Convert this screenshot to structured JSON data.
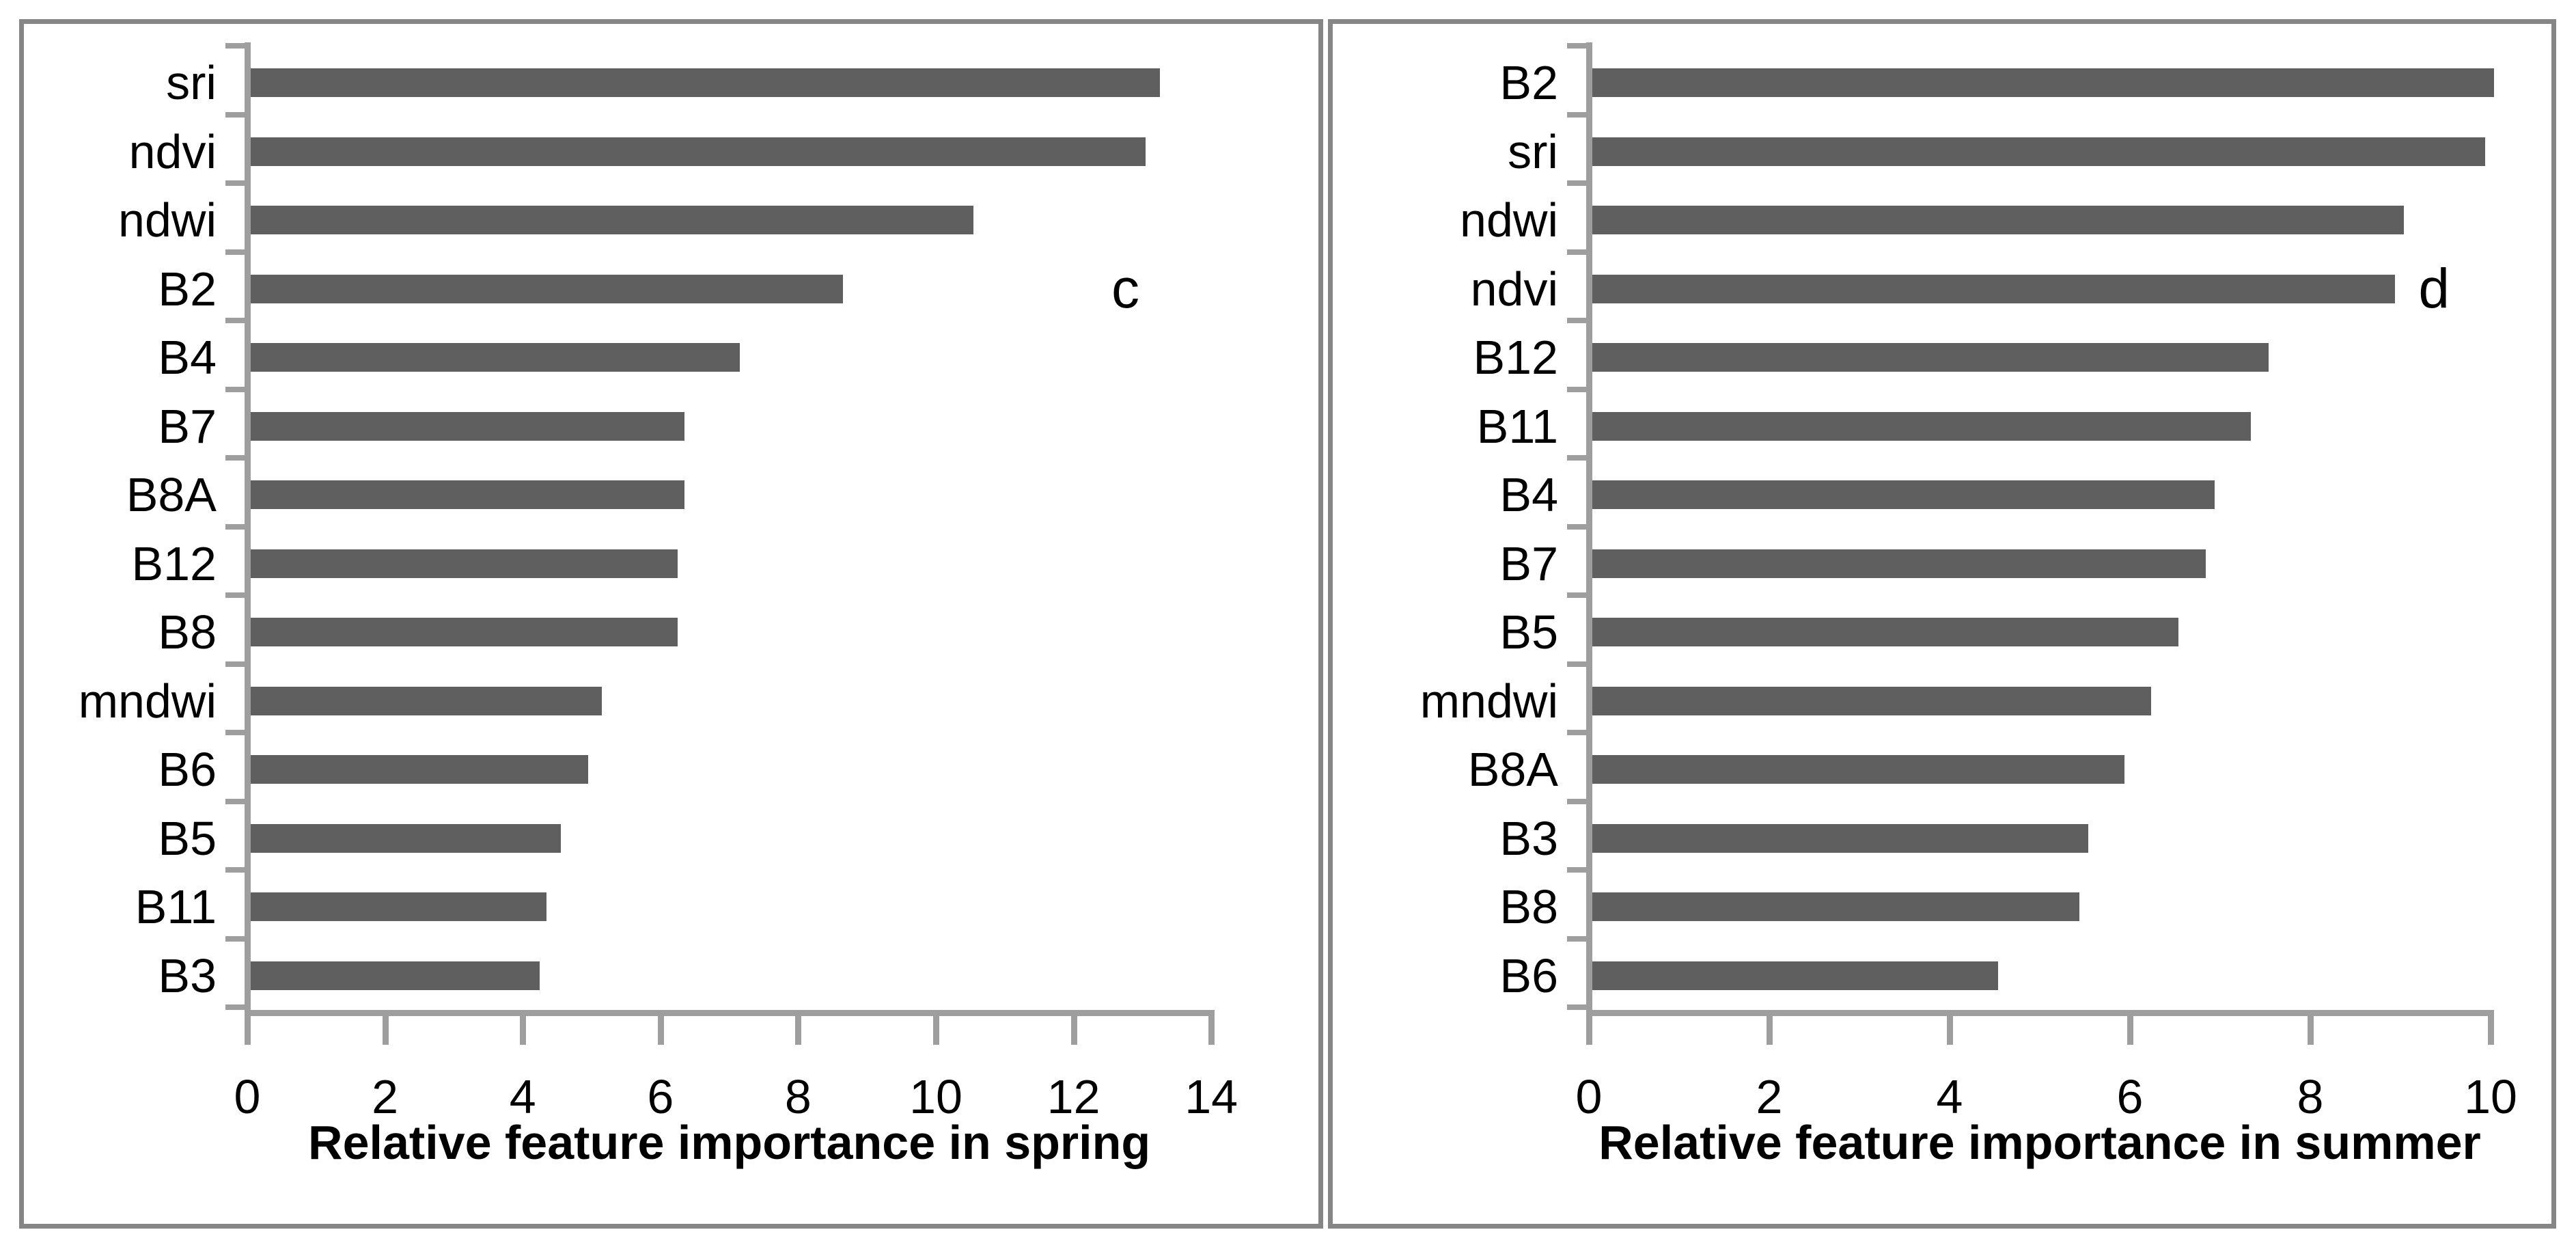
{
  "figure": {
    "background": "#ffffff",
    "panel_border_color": "#868686"
  },
  "colors": {
    "bar": "#5f5f5f",
    "axis": "#9e9e9e",
    "border": "#868686",
    "text": "#000000",
    "background": "#ffffff"
  },
  "chart_data": [
    {
      "type": "bar",
      "orientation": "horizontal",
      "panel_letter": "c",
      "categories": [
        "sri",
        "ndvi",
        "ndwi",
        "B2",
        "B4",
        "B7",
        "B8A",
        "B12",
        "B8",
        "mndwi",
        "B6",
        "B5",
        "B11",
        "B3"
      ],
      "values": [
        13.2,
        13.0,
        10.5,
        8.6,
        7.1,
        6.3,
        6.3,
        6.2,
        6.2,
        5.1,
        4.9,
        4.5,
        4.3,
        4.2
      ],
      "title": "",
      "xlabel": "Relative feature importance in spring",
      "ylabel": "",
      "xlim": [
        0,
        14
      ],
      "xticks": [
        0,
        2,
        4,
        6,
        8,
        10,
        12,
        14
      ],
      "grid": false,
      "legend": false,
      "annotation": {
        "text": "c",
        "x_units": 12.55,
        "row_index": 3
      }
    },
    {
      "type": "bar",
      "orientation": "horizontal",
      "panel_letter": "d",
      "categories": [
        "B2",
        "sri",
        "ndwi",
        "ndvi",
        "B12",
        "B11",
        "B4",
        "B7",
        "B5",
        "mndwi",
        "B8A",
        "B3",
        "B8",
        "B6"
      ],
      "values": [
        10.0,
        9.9,
        9.0,
        8.9,
        7.5,
        7.3,
        6.9,
        6.8,
        6.5,
        6.2,
        5.9,
        5.5,
        5.4,
        4.5
      ],
      "title": "",
      "xlabel": "Relative feature importance in summer",
      "ylabel": "",
      "xlim": [
        0,
        10
      ],
      "xticks": [
        0,
        2,
        4,
        6,
        8,
        10
      ],
      "grid": false,
      "legend": false,
      "annotation": {
        "text": "d",
        "x_units": 9.2,
        "row_index": 3
      }
    }
  ]
}
